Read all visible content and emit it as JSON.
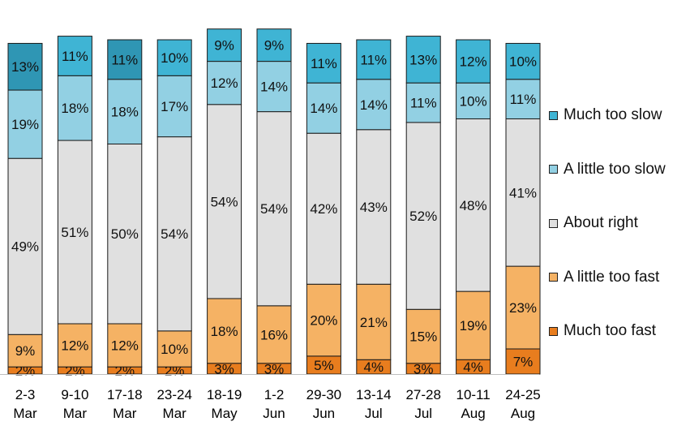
{
  "chart_data": {
    "type": "bar",
    "stacked": true,
    "normalized": true,
    "categories": [
      [
        "2-3",
        "Mar"
      ],
      [
        "9-10",
        "Mar"
      ],
      [
        "17-18",
        "Mar"
      ],
      [
        "23-24",
        "Mar"
      ],
      [
        "18-19",
        "May"
      ],
      [
        "1-2",
        "Jun"
      ],
      [
        "29-30",
        "Jun"
      ],
      [
        "13-14",
        "Jul"
      ],
      [
        "27-28",
        "Jul"
      ],
      [
        "10-11",
        "Aug"
      ],
      [
        "24-25",
        "Aug"
      ]
    ],
    "series": [
      {
        "name": "Much too fast",
        "color": "#E87D1E",
        "values": [
          2,
          2,
          2,
          2,
          3,
          3,
          5,
          4,
          3,
          4,
          7
        ]
      },
      {
        "name": "A little too fast",
        "color": "#F5B264",
        "values": [
          9,
          12,
          12,
          10,
          18,
          16,
          20,
          21,
          15,
          19,
          23
        ]
      },
      {
        "name": "About right",
        "color": "#E0E0E0",
        "values": [
          49,
          51,
          50,
          54,
          54,
          54,
          42,
          43,
          52,
          48,
          41
        ]
      },
      {
        "name": "A little too slow",
        "color": "#92D0E3",
        "values": [
          19,
          18,
          18,
          17,
          12,
          14,
          14,
          14,
          11,
          10,
          11
        ]
      },
      {
        "name": "Much too slow",
        "colors": [
          "#2F96B4",
          "#3FB4D4",
          "#2F96B4",
          "#3FB4D4",
          "#3FB4D4",
          "#3FB4D4",
          "#3FB4D4",
          "#3FB4D4",
          "#3FB4D4",
          "#3FB4D4",
          "#3FB4D4"
        ],
        "values": [
          13,
          11,
          11,
          10,
          9,
          9,
          11,
          11,
          13,
          12,
          10
        ]
      }
    ],
    "value_suffix": "%",
    "legend_position": "right",
    "legend_order": [
      "Much too slow",
      "A little too slow",
      "About right",
      "A little too fast",
      "Much too fast"
    ]
  }
}
